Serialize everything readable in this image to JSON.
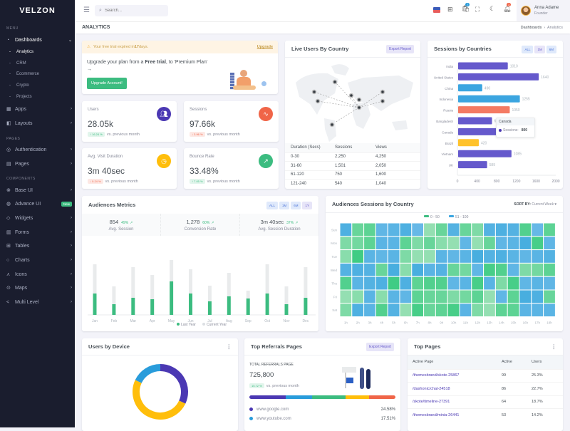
{
  "brand": "VELZON",
  "sidebar": {
    "sections": [
      "MENU",
      "PAGES",
      "COMPONENTS"
    ],
    "items": [
      {
        "label": "Dashboards",
        "icon": "gauge-icon",
        "expanded": true
      },
      {
        "label": "Apps",
        "icon": "apps-icon"
      },
      {
        "label": "Layouts",
        "icon": "layout-icon"
      },
      {
        "label": "Authentication",
        "icon": "account-circle-icon"
      },
      {
        "label": "Pages",
        "icon": "pages-icon"
      },
      {
        "label": "Base UI",
        "icon": "pencil-ruler-icon"
      },
      {
        "label": "Advance UI",
        "icon": "stack-icon",
        "badge": "New"
      },
      {
        "label": "Widgets",
        "icon": "honour-icon"
      },
      {
        "label": "Forms",
        "icon": "file-list-icon"
      },
      {
        "label": "Tables",
        "icon": "table-icon"
      },
      {
        "label": "Charts",
        "icon": "pie-chart-icon"
      },
      {
        "label": "Icons",
        "icon": "compasses-icon"
      },
      {
        "label": "Maps",
        "icon": "map-pin-icon"
      },
      {
        "label": "Multi Level",
        "icon": "share-icon"
      }
    ],
    "submenu": [
      "Analytics",
      "CRM",
      "Ecommerce",
      "Crypto",
      "Projects"
    ],
    "active_sub": "Analytics"
  },
  "topbar": {
    "search_placeholder": "Search...",
    "cart_count": "7",
    "notif_count": "3",
    "user_name": "Anna Adame",
    "user_role": "Founder"
  },
  "page": {
    "title": "ANALYTICS",
    "breadcrumb": [
      "Dashboards",
      "Analytics"
    ]
  },
  "trial": {
    "alert_pre": "Your free trial expired in ",
    "alert_days": "17",
    "alert_post": " days.",
    "upgrade_link": "Upgrade",
    "text_pre": "Upgrade your plan from a ",
    "text_bold": "Free trial",
    "text_post": ", to 'Premium Plan' →",
    "button": "Upgrade Account!"
  },
  "stats": [
    {
      "label": "Users",
      "value": "28.05k",
      "change": "16.24 %",
      "dir": "up",
      "compare": "vs. previous month",
      "icon": "users-icon",
      "color": "#4b38b3"
    },
    {
      "label": "Sessions",
      "value": "97.66k",
      "change": "3.96 %",
      "dir": "down",
      "compare": "vs. previous month",
      "icon": "pulse-icon",
      "color": "#f06548"
    },
    {
      "label": "Avg. Visit Duration",
      "value": "3m 40sec",
      "change": "0.24 %",
      "dir": "down",
      "compare": "vs. previous month",
      "icon": "clock-icon",
      "color": "#ffbe0b"
    },
    {
      "label": "Bounce Rate",
      "value": "33.48%",
      "change": "7.05 %",
      "dir": "up",
      "compare": "vs. previous month",
      "icon": "external-link-icon",
      "color": "#3cbc80"
    }
  ],
  "live_users": {
    "title": "Live Users By Country",
    "export": "Export Report",
    "columns": [
      "Duration (Secs)",
      "Sessions",
      "Views"
    ],
    "rows": [
      [
        "0-30",
        "2,250",
        "4,250"
      ],
      [
        "31-60",
        "1,501",
        "2,050"
      ],
      [
        "61-120",
        "750",
        "1,600"
      ],
      [
        "121-240",
        "540",
        "1,040"
      ]
    ]
  },
  "sessions_countries": {
    "title": "Sessions by Countries",
    "filters": [
      "ALL",
      "1M",
      "6M"
    ],
    "tooltip": {
      "title": "Canada",
      "label": "Sessions:",
      "value": "800"
    }
  },
  "audiences": {
    "title": "Audiences Metrics",
    "filters": [
      "ALL",
      "1M",
      "6M",
      "1Y"
    ],
    "metrics": [
      {
        "value": "854",
        "change": "49%",
        "label": "Avg. Session"
      },
      {
        "value": "1,278",
        "change": "60%",
        "label": "Conversion Rate"
      },
      {
        "value": "3m 40sec",
        "change": "37%",
        "label": "Avg. Session Duration"
      }
    ]
  },
  "heatmap": {
    "title": "Audiences Sessions by Country",
    "sort_label": "SORT BY:",
    "sort_value": "Current Week"
  },
  "device": {
    "title": "Users by Device"
  },
  "referrals": {
    "title": "Top Referrals Pages",
    "export": "Export Report",
    "total_label": "TOTAL REFERRALS PAGE",
    "total": "725,800",
    "change": "15.72 %",
    "compare": "vs. previous month",
    "bar": [
      {
        "pct": 25,
        "color": "#4b38b3"
      },
      {
        "pct": 18,
        "color": "#299cdb"
      },
      {
        "pct": 23,
        "color": "#3cbc80"
      },
      {
        "pct": 16,
        "color": "#ffbe0b"
      },
      {
        "pct": 18,
        "color": "#f06548"
      }
    ],
    "sites": [
      {
        "name": "www.google.com",
        "pct": "24.58%",
        "color": "#4b38b3"
      },
      {
        "name": "www.youtube.com",
        "pct": "17.51%",
        "color": "#299cdb"
      }
    ]
  },
  "top_pages": {
    "title": "Top Pages",
    "columns": [
      "Active Page",
      "Active",
      "Users"
    ],
    "rows": [
      [
        "/themesbrand/skote-25867",
        "99",
        "25.3%"
      ],
      [
        "/dashonic/chat-24518",
        "86",
        "22.7%"
      ],
      [
        "/skote/timeline-27391",
        "64",
        "18.7%"
      ],
      [
        "/themesbrand/minia-26441",
        "53",
        "14.2%"
      ]
    ]
  },
  "chart_data": [
    {
      "type": "bar",
      "orientation": "horizontal",
      "title": "Sessions by Countries",
      "categories": [
        "India",
        "United States",
        "China",
        "Indonesia",
        "Russia",
        "Bangladesh",
        "Canada",
        "Brazil",
        "Vietnam",
        "UK"
      ],
      "values": [
        1010,
        1640,
        490,
        1255,
        1050,
        689,
        800,
        420,
        1085,
        589
      ],
      "colors": [
        "#6559cc",
        "#6559cc",
        "#3ba5e0",
        "#3ba5e0",
        "#f47a63",
        "#6559cc",
        "#6559cc",
        "#ffc22b",
        "#6559cc",
        "#6559cc"
      ],
      "xlim": [
        0,
        2000
      ],
      "xticks": [
        0,
        400,
        800,
        1200,
        1600,
        2000
      ]
    },
    {
      "type": "bar",
      "stacked": true,
      "title": "Audiences Metrics",
      "categories": [
        "Jan",
        "Feb",
        "Mar",
        "Apr",
        "May",
        "Jun",
        "Jul",
        "Aug",
        "Sep",
        "Oct",
        "Nov",
        "Dec"
      ],
      "series": [
        {
          "name": "Last Year",
          "color": "#3cbc80",
          "values": [
            30,
            15,
            24,
            22,
            47,
            30,
            19,
            26,
            23,
            30,
            15,
            24
          ]
        },
        {
          "name": "Current Year",
          "color": "#e9ebec",
          "values": [
            41,
            25,
            43,
            34,
            30,
            34,
            22,
            33,
            11,
            41,
            25,
            43
          ]
        }
      ],
      "legend": "bottom"
    },
    {
      "type": "heatmap",
      "title": "Audiences Sessions by Country",
      "rows": [
        "Sun",
        "Mon",
        "Tue",
        "Wed",
        "Thu",
        "Fri",
        "Sat"
      ],
      "columns": [
        "1h",
        "2h",
        "3h",
        "4h",
        "5h",
        "6h",
        "7h",
        "8h",
        "9h",
        "10h",
        "11h",
        "12h",
        "13h",
        "14h",
        "15h",
        "16h",
        "17h",
        "18h"
      ],
      "legend": [
        {
          "name": "0 - 50",
          "color": "#3cbc80"
        },
        {
          "name": "51 - 100",
          "color": "#3ba5e0"
        }
      ],
      "values": [
        [
          85,
          30,
          35,
          70,
          75,
          85,
          65,
          10,
          30,
          80,
          30,
          20,
          80,
          85,
          80,
          40,
          65,
          35
        ],
        [
          20,
          25,
          35,
          75,
          75,
          35,
          20,
          30,
          15,
          10,
          70,
          10,
          30,
          70,
          75,
          90,
          45,
          70
        ],
        [
          15,
          48,
          75,
          70,
          75,
          20,
          10,
          10,
          75,
          70,
          75,
          90,
          80,
          85,
          75,
          70,
          75,
          80
        ],
        [
          80,
          85,
          80,
          30,
          90,
          15,
          90,
          75,
          80,
          30,
          25,
          70,
          45,
          40,
          70,
          20,
          25,
          35
        ],
        [
          40,
          75,
          80,
          85,
          48,
          85,
          35,
          40,
          40,
          70,
          75,
          45,
          75,
          20,
          45,
          70,
          75,
          70
        ],
        [
          10,
          15,
          75,
          15,
          75,
          70,
          35,
          30,
          30,
          20,
          25,
          35,
          10,
          70,
          35,
          90,
          85,
          30
        ],
        [
          20,
          85,
          75,
          40,
          80,
          10,
          45,
          30,
          35,
          45,
          75,
          20,
          10,
          35,
          35,
          75,
          75,
          75
        ]
      ]
    },
    {
      "type": "pie",
      "donut": true,
      "title": "Users by Device",
      "values": [
        32,
        50,
        18
      ],
      "colors": [
        "#4b38b3",
        "#ffbe0b",
        "#299cdb"
      ]
    }
  ]
}
